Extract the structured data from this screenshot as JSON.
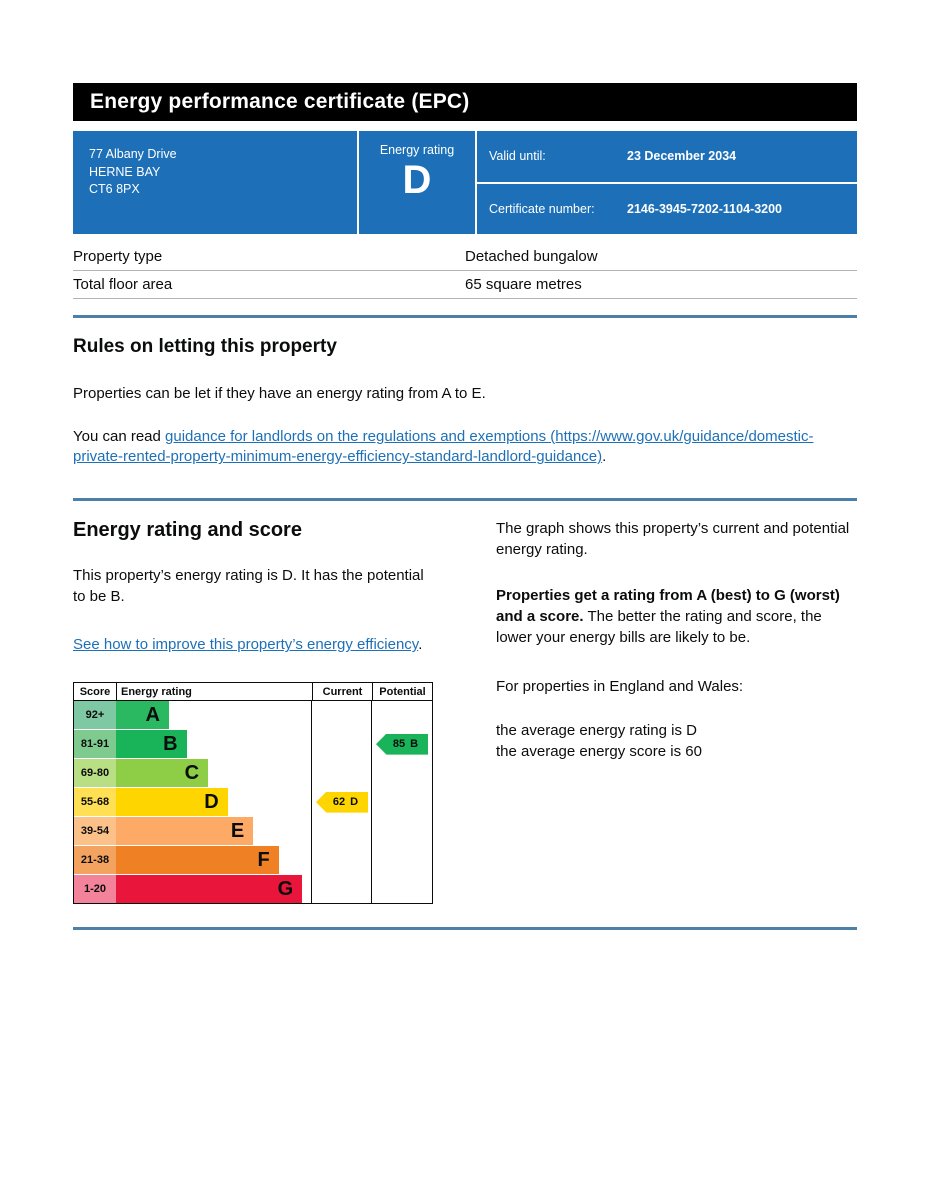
{
  "colors": {
    "banner_blue": "#1d70b8",
    "rule_blue": "#4d80a6",
    "link_blue": "#1d70b8"
  },
  "header": {
    "title": "Energy performance certificate (EPC)"
  },
  "banner": {
    "address_line1": "77 Albany Drive",
    "address_line2": "HERNE BAY",
    "address_line3": "CT6 8PX",
    "energy_rating_label": "Energy rating",
    "energy_rating_letter": "D",
    "valid_until_label": "Valid until:",
    "valid_until_value": "23 December 2034",
    "certificate_number_label": "Certificate number:",
    "certificate_number_value": "2146-3945-7202-1104-3200"
  },
  "property_details": {
    "rows": [
      {
        "label": "Property type",
        "value": "Detached bungalow"
      },
      {
        "label": "Total floor area",
        "value": "65 square metres"
      }
    ]
  },
  "rules_section": {
    "heading": "Rules on letting this property",
    "paragraph1": "Properties can be let if they have an energy rating from A to E.",
    "paragraph2_prefix": "You can read ",
    "paragraph2_link": "guidance for landlords on the regulations and exemptions (https://www.gov.uk/guidance/domestic-private-rented-property-minimum-energy-efficiency-standard-landlord-guidance)",
    "paragraph2_suffix": "."
  },
  "rating_section": {
    "heading": "Energy rating and score",
    "intro": "This property’s energy rating is D. It has the potential to be B.",
    "improve_link": "See how to improve this property’s energy efficiency",
    "improve_suffix": ".",
    "graph_para": "The graph shows this property’s current and potential energy rating.",
    "ratings_bold": "Properties get a rating from A (best) to G (worst) and a score.",
    "ratings_rest": " The better the rating and score, the lower your energy bills are likely to be.",
    "england_wales_para": "For properties in England and Wales:",
    "average_rating_line": "the average energy rating is D",
    "average_score_line": "the average energy score is 60"
  },
  "chart_data": {
    "type": "bar",
    "subtype": "epc-rating-bands",
    "headers": [
      "Score",
      "Energy rating",
      "Current",
      "Potential"
    ],
    "bands": [
      {
        "score": "92+",
        "letter": "A",
        "width_pct": 27,
        "bar_color": "#2ab860",
        "score_color": "#7ec8a4"
      },
      {
        "score": "81-91",
        "letter": "B",
        "width_pct": 36,
        "bar_color": "#19b459",
        "score_color": "#7fcb8f"
      },
      {
        "score": "69-80",
        "letter": "C",
        "width_pct": 47,
        "bar_color": "#8dce46",
        "score_color": "#b9df84"
      },
      {
        "score": "55-68",
        "letter": "D",
        "width_pct": 57,
        "bar_color": "#ffd500",
        "score_color": "#ffdf54"
      },
      {
        "score": "39-54",
        "letter": "E",
        "width_pct": 70,
        "bar_color": "#fcaa65",
        "score_color": "#fcc089"
      },
      {
        "score": "21-38",
        "letter": "F",
        "width_pct": 83,
        "bar_color": "#ef8023",
        "score_color": "#f3a35f"
      },
      {
        "score": "1-20",
        "letter": "G",
        "width_pct": 95,
        "bar_color": "#e9153b",
        "score_color": "#f2839b"
      }
    ],
    "current": {
      "score": "62",
      "letter": "D",
      "color": "#ffd500"
    },
    "potential": {
      "score": "85",
      "letter": "B",
      "color": "#19b459"
    }
  }
}
